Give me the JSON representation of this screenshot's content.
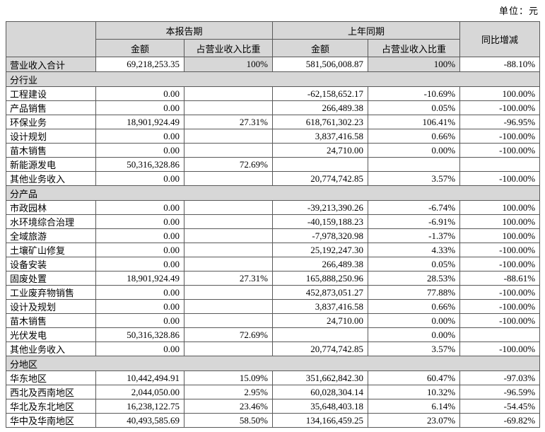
{
  "unit_label": "单位：元",
  "colors": {
    "shaded_bg": "#d7d7d7",
    "grid_line": "#595959"
  },
  "table": {
    "header": {
      "current_period": "本报告期",
      "prior_period": "上年同期",
      "yoy_change": "同比增减",
      "amount_current": "金额",
      "pct_current": "占营业收入比重",
      "amount_prior": "金额",
      "pct_prior": "占营业收入比重"
    },
    "total_row": {
      "label": "营业收入合计",
      "cells": [
        "69,218,253.35",
        "100%",
        "581,506,008.87",
        "100%",
        "-88.10%"
      ]
    },
    "sections": [
      {
        "title": "分行业",
        "rows": [
          [
            "工程建设",
            "0.00",
            "",
            "-62,158,652.17",
            "-10.69%",
            "100.00%"
          ],
          [
            "产品销售",
            "0.00",
            "",
            "266,489.38",
            "0.05%",
            "-100.00%"
          ],
          [
            "环保业务",
            "18,901,924.49",
            "27.31%",
            "618,761,302.23",
            "106.41%",
            "-96.95%"
          ],
          [
            "设计规划",
            "0.00",
            "",
            "3,837,416.58",
            "0.66%",
            "-100.00%"
          ],
          [
            "苗木销售",
            "0.00",
            "",
            "24,710.00",
            "0.00%",
            "-100.00%"
          ],
          [
            "新能源发电",
            "50,316,328.86",
            "72.69%",
            "",
            "",
            ""
          ],
          [
            "其他业务收入",
            "0.00",
            "",
            "20,774,742.85",
            "3.57%",
            "-100.00%"
          ]
        ]
      },
      {
        "title": "分产品",
        "rows": [
          [
            "市政园林",
            "0.00",
            "",
            "-39,213,390.26",
            "-6.74%",
            "100.00%"
          ],
          [
            "水环境综合治理",
            "0.00",
            "",
            "-40,159,188.23",
            "-6.91%",
            "100.00%"
          ],
          [
            "全域旅游",
            "0.00",
            "",
            "-7,978,320.98",
            "-1.37%",
            "100.00%"
          ],
          [
            "土壤矿山修复",
            "0.00",
            "",
            "25,192,247.30",
            "4.33%",
            "-100.00%"
          ],
          [
            "设备安装",
            "0.00",
            "",
            "266,489.38",
            "0.05%",
            "-100.00%"
          ],
          [
            "固废处置",
            "18,901,924.49",
            "27.31%",
            "165,888,250.96",
            "28.53%",
            "-88.61%"
          ],
          [
            "工业废弃物销售",
            "0.00",
            "",
            "452,873,051.27",
            "77.88%",
            "-100.00%"
          ],
          [
            "设计及规划",
            "0.00",
            "",
            "3,837,416.58",
            "0.66%",
            "-100.00%"
          ],
          [
            "苗木销售",
            "0.00",
            "",
            "24,710.00",
            "0.00%",
            "-100.00%"
          ],
          [
            "光伏发电",
            "50,316,328.86",
            "72.69%",
            "",
            "0.00%",
            ""
          ],
          [
            "其他业务收入",
            "0.00",
            "",
            "20,774,742.85",
            "3.57%",
            "-100.00%"
          ]
        ]
      },
      {
        "title": "分地区",
        "rows": [
          [
            "华东地区",
            "10,442,494.91",
            "15.09%",
            "351,662,842.30",
            "60.47%",
            "-97.03%"
          ],
          [
            "西北及西南地区",
            "2,044,050.00",
            "2.95%",
            "60,028,304.14",
            "10.32%",
            "-96.59%"
          ],
          [
            "华北及东北地区",
            "16,238,122.75",
            "23.46%",
            "35,648,403.18",
            "6.14%",
            "-54.45%"
          ],
          [
            "华中及华南地区",
            "40,493,585.69",
            "58.50%",
            "134,166,459.25",
            "23.07%",
            "-69.82%"
          ]
        ]
      }
    ]
  }
}
